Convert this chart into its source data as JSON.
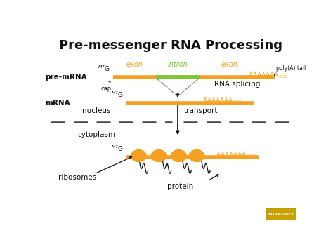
{
  "title": "Pre-messenger RNA Processing",
  "title_fontsize": 13,
  "bg_color": "#ffffff",
  "orange": "#F5A020",
  "green": "#7DC832",
  "black": "#111111",
  "gray": "#888888",
  "pre_mrna_label": "pre-mRNA",
  "mrna_label": "mRNA",
  "nucleus_label": "nucleus",
  "cytoplasm_label": "cytoplasm",
  "transport_label": "transport",
  "rna_splicing_label": "RNA splicing",
  "ribosomes_label": "ribosomes",
  "protein_label": "protein",
  "cap_label": "cap",
  "poly_a_label": "poly(A) tail",
  "exon_label": "exon",
  "intron_label": "intron"
}
